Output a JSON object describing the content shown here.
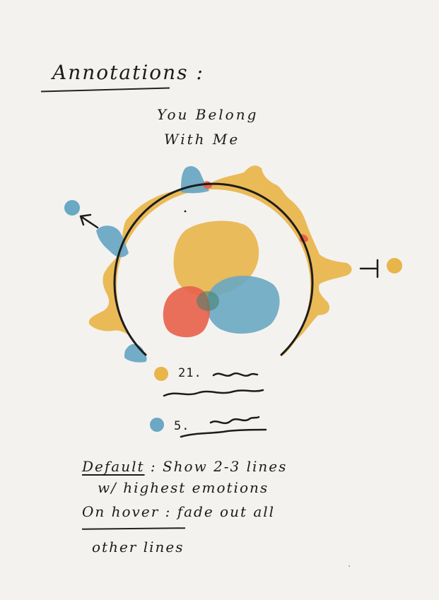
{
  "header": {
    "title": "Annotations :",
    "song_line_1": "You Belong",
    "song_line_2": "With Me"
  },
  "legend": {
    "item_1_number": "21.",
    "item_2_number": "5."
  },
  "notes": {
    "default_label": "Default",
    "default_text": ": Show 2-3 lines",
    "default_text_2": "w/ highest emotions",
    "hover_label": "On hover",
    "hover_text": ": fade out all",
    "hover_text_2": "other lines"
  },
  "colors": {
    "yellow": "#e8b54a",
    "blue": "#6aa8c3",
    "red": "#e8614a",
    "ink": "#1c1c1c",
    "paper": "#f4f2ef"
  }
}
